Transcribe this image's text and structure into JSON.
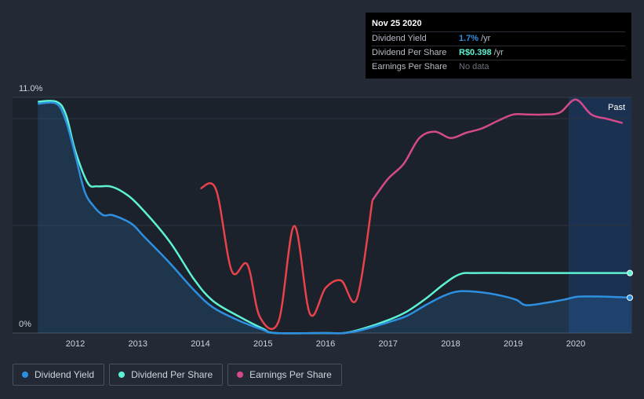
{
  "chart_data": {
    "type": "line",
    "y_axis": {
      "top_label": "11.0%",
      "bottom_label": "0%",
      "ylim": [
        0,
        11.0
      ]
    },
    "x_ticks": [
      "2012",
      "2013",
      "2014",
      "2015",
      "2016",
      "2017",
      "2018",
      "2019",
      "2020"
    ],
    "past_label": "Past",
    "series": [
      {
        "name": "Dividend Yield",
        "color": "#2e8fe0",
        "unit": "% yield",
        "points": [
          [
            2011.4,
            10.7
          ],
          [
            2011.7,
            10.7
          ],
          [
            2011.85,
            9.9
          ],
          [
            2012.0,
            8.3
          ],
          [
            2012.15,
            6.6
          ],
          [
            2012.3,
            5.9
          ],
          [
            2012.45,
            5.5
          ],
          [
            2012.6,
            5.5
          ],
          [
            2012.9,
            5.1
          ],
          [
            2013.1,
            4.5
          ],
          [
            2013.5,
            3.3
          ],
          [
            2013.9,
            2.0
          ],
          [
            2014.2,
            1.2
          ],
          [
            2014.6,
            0.6
          ],
          [
            2015.0,
            0.15
          ],
          [
            2015.2,
            0.0
          ],
          [
            2016.0,
            0.0
          ],
          [
            2016.3,
            0.0
          ],
          [
            2016.6,
            0.15
          ],
          [
            2017.0,
            0.5
          ],
          [
            2017.3,
            0.8
          ],
          [
            2017.6,
            1.3
          ],
          [
            2017.9,
            1.75
          ],
          [
            2018.15,
            1.95
          ],
          [
            2018.5,
            1.9
          ],
          [
            2018.8,
            1.75
          ],
          [
            2019.05,
            1.55
          ],
          [
            2019.2,
            1.3
          ],
          [
            2019.5,
            1.4
          ],
          [
            2019.8,
            1.55
          ],
          [
            2020.05,
            1.7
          ],
          [
            2020.45,
            1.7
          ],
          [
            2020.9,
            1.65
          ]
        ]
      },
      {
        "name": "Dividend Per Share",
        "color": "#5ef2d4",
        "unit": "scaled",
        "points": [
          [
            2011.4,
            10.8
          ],
          [
            2011.7,
            10.8
          ],
          [
            2011.85,
            10.2
          ],
          [
            2012.0,
            8.5
          ],
          [
            2012.2,
            7.0
          ],
          [
            2012.35,
            6.85
          ],
          [
            2012.55,
            6.85
          ],
          [
            2012.75,
            6.6
          ],
          [
            2013.0,
            6.0
          ],
          [
            2013.5,
            4.3
          ],
          [
            2013.9,
            2.5
          ],
          [
            2014.2,
            1.5
          ],
          [
            2014.6,
            0.8
          ],
          [
            2015.0,
            0.2
          ],
          [
            2015.2,
            0.0
          ],
          [
            2016.0,
            0.0
          ],
          [
            2016.3,
            0.0
          ],
          [
            2016.6,
            0.2
          ],
          [
            2017.0,
            0.6
          ],
          [
            2017.3,
            1.0
          ],
          [
            2017.6,
            1.6
          ],
          [
            2017.9,
            2.3
          ],
          [
            2018.15,
            2.75
          ],
          [
            2018.4,
            2.8
          ],
          [
            2019.0,
            2.8
          ],
          [
            2020.0,
            2.8
          ],
          [
            2020.9,
            2.8
          ]
        ]
      },
      {
        "name": "Earnings Per Share",
        "color": "#d44a8a",
        "unit": "scaled",
        "color_negative": "#e8424a",
        "points": [
          [
            2014.0,
            6.75
          ],
          [
            2014.25,
            6.7
          ],
          [
            2014.5,
            2.9
          ],
          [
            2014.75,
            3.2
          ],
          [
            2014.95,
            0.75
          ],
          [
            2015.25,
            0.55
          ],
          [
            2015.5,
            5.0
          ],
          [
            2015.75,
            0.9
          ],
          [
            2016.0,
            2.1
          ],
          [
            2016.25,
            2.45
          ],
          [
            2016.5,
            1.6
          ],
          [
            2016.75,
            6.2
          ],
          [
            2017.0,
            7.2
          ],
          [
            2017.25,
            7.9
          ],
          [
            2017.5,
            9.1
          ],
          [
            2017.75,
            9.4
          ],
          [
            2018.0,
            9.1
          ],
          [
            2018.25,
            9.35
          ],
          [
            2018.5,
            9.55
          ],
          [
            2018.75,
            9.9
          ],
          [
            2019.0,
            10.2
          ],
          [
            2019.25,
            10.2
          ],
          [
            2019.5,
            10.2
          ],
          [
            2019.75,
            10.3
          ],
          [
            2020.0,
            10.9
          ],
          [
            2020.25,
            10.2
          ],
          [
            2020.5,
            10.0
          ],
          [
            2020.75,
            9.8
          ]
        ],
        "negative_until": 2016.75
      }
    ]
  },
  "tooltip": {
    "date": "Nov 25 2020",
    "rows": [
      {
        "label": "Dividend Yield",
        "value": "1.7%",
        "unit": "/yr",
        "color": "#2e8fe0"
      },
      {
        "label": "Dividend Per Share",
        "value": "R$0.398",
        "unit": "/yr",
        "color": "#5ef2d4"
      },
      {
        "label": "Earnings Per Share",
        "value": "",
        "unit": "",
        "nodata": "No data"
      }
    ]
  },
  "legend": [
    {
      "label": "Dividend Yield",
      "color": "#2e8fe0"
    },
    {
      "label": "Dividend Per Share",
      "color": "#5ef2d4"
    },
    {
      "label": "Earnings Per Share",
      "color": "#d44a8a"
    }
  ]
}
